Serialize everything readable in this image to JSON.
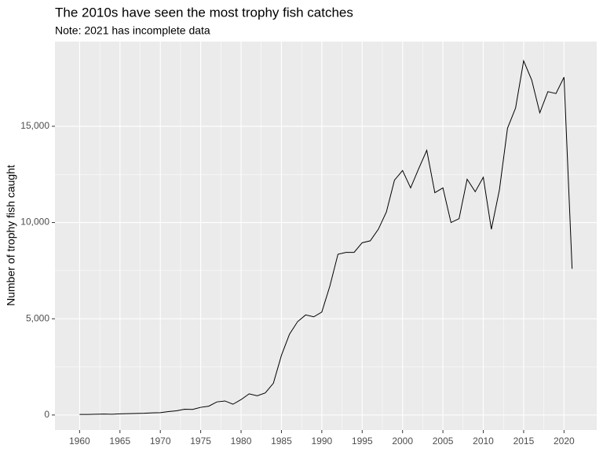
{
  "chart_data": {
    "type": "line",
    "title": "The 2010s have seen the most trophy fish catches",
    "subtitle": "Note: 2021 has incomplete data",
    "y_label": "Number of trophy fish caught",
    "x": [
      1960,
      1961,
      1962,
      1963,
      1964,
      1965,
      1966,
      1967,
      1968,
      1969,
      1970,
      1971,
      1972,
      1973,
      1974,
      1975,
      1976,
      1977,
      1978,
      1979,
      1980,
      1981,
      1982,
      1983,
      1984,
      1985,
      1986,
      1987,
      1988,
      1989,
      1990,
      1991,
      1992,
      1993,
      1994,
      1995,
      1996,
      1997,
      1998,
      1999,
      2000,
      2001,
      2002,
      2003,
      2004,
      2005,
      2006,
      2007,
      2008,
      2009,
      2010,
      2011,
      2012,
      2013,
      2014,
      2015,
      2016,
      2017,
      2018,
      2019,
      2020,
      2021
    ],
    "series": [
      {
        "name": "Trophy fish",
        "color": "#000000",
        "values": [
          30,
          30,
          40,
          50,
          40,
          60,
          70,
          80,
          90,
          110,
          120,
          180,
          220,
          300,
          290,
          400,
          460,
          680,
          730,
          560,
          800,
          1100,
          1000,
          1150,
          1650,
          3100,
          4200,
          4850,
          5200,
          5100,
          5350,
          6700,
          8350,
          8450,
          8450,
          8950,
          9050,
          9650,
          10550,
          12200,
          12700,
          11800,
          12800,
          13750,
          11550,
          11800,
          10000,
          10200,
          12250,
          11600,
          12350,
          9650,
          11700,
          14900,
          15950,
          18400,
          17400,
          15700,
          16800,
          16700,
          17550,
          7600
        ]
      }
    ],
    "xlim": [
      1956.95,
      2024.05
    ],
    "xticks": [
      1960,
      1965,
      1970,
      1975,
      1980,
      1985,
      1990,
      1995,
      2000,
      2005,
      2010,
      2015,
      2020
    ],
    "ylim": [
      -780,
      19400
    ],
    "yticks": [
      0,
      {
        "value": 5000,
        "label": "5,000"
      },
      {
        "value": 10000,
        "label": "10,000"
      },
      {
        "value": 15000,
        "label": "15,000"
      }
    ],
    "grid": true
  }
}
